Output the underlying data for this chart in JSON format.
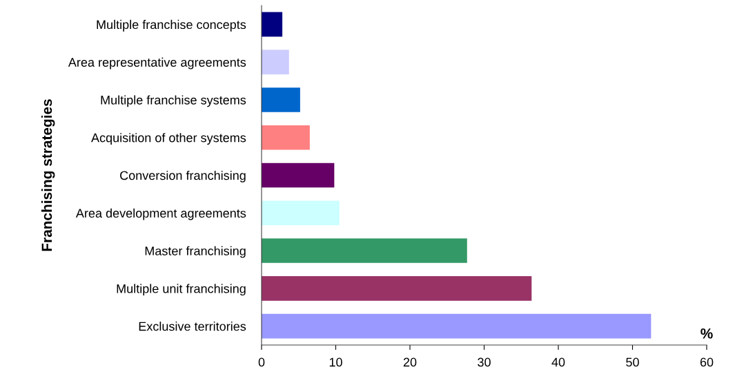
{
  "chart_data": {
    "type": "bar",
    "orientation": "horizontal",
    "ylabel": "Franchising strategies",
    "xlabel": "%",
    "categories": [
      "Multiple franchise concepts",
      "Area representative agreements",
      "Multiple franchise systems",
      "Acquisition of other systems",
      "Conversion franchising",
      "Area development agreements",
      "Master franchising",
      "Multiple unit franchising",
      "Exclusive territories"
    ],
    "values": [
      2.8,
      3.7,
      5.2,
      6.5,
      9.8,
      10.5,
      27.7,
      36.4,
      52.5
    ],
    "colors": [
      "#000080",
      "#ccccff",
      "#0066cc",
      "#ff8080",
      "#660066",
      "#ccffff",
      "#339966",
      "#993366",
      "#9999ff"
    ],
    "xlim": [
      0,
      60
    ],
    "xticks": [
      0,
      10,
      20,
      30,
      40,
      50,
      60
    ],
    "grid": false
  }
}
